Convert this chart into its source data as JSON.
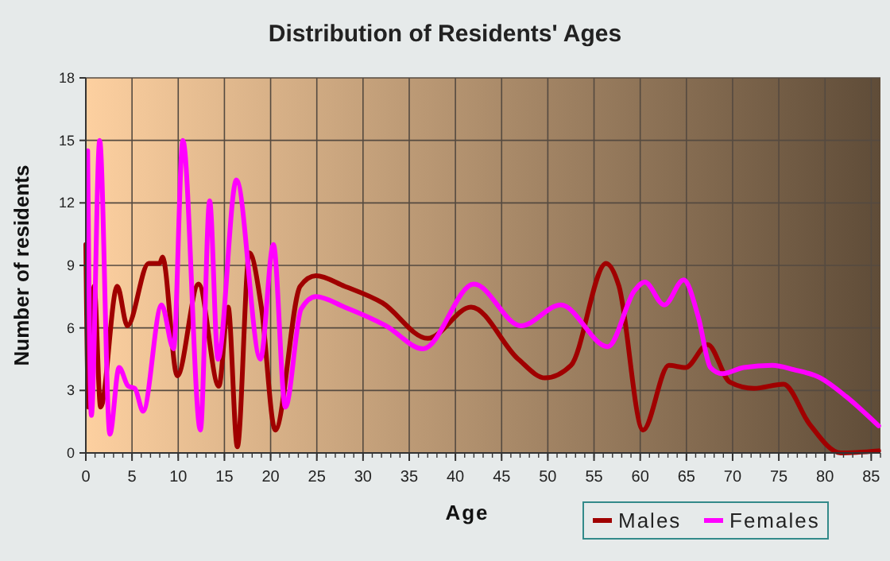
{
  "chart_data": {
    "type": "line",
    "title": "Distribution of Residents' Ages",
    "xlabel": "Age",
    "ylabel": "Number of residents",
    "xlim": [
      0,
      86
    ],
    "xticks": [
      0,
      5,
      10,
      15,
      20,
      25,
      30,
      35,
      40,
      45,
      50,
      55,
      60,
      65,
      70,
      75,
      80,
      85
    ],
    "ylim": [
      0,
      18
    ],
    "yticks": [
      0,
      3,
      6,
      9,
      12,
      15,
      18
    ],
    "grid": true,
    "legend": "bottom right",
    "marker": "none",
    "line_style": "solid",
    "series": [
      {
        "name": "Males",
        "color": "#a00000",
        "x": [
          0,
          0.3,
          0.9,
          1.6,
          3.4,
          4.5,
          6.8,
          8,
          8.3,
          9.9,
          12.2,
          14.4,
          15.4,
          16.4,
          17.7,
          19,
          20.5,
          23.2,
          24.9,
          28,
          32.1,
          37,
          41.7,
          46.8,
          49.7,
          52.5,
          56.3,
          57.7,
          60.3,
          63.1,
          64.9,
          67.3,
          69.7,
          72.3,
          75.5,
          78.3,
          81.7,
          85.8
        ],
        "values": [
          10,
          2.2,
          8,
          2.2,
          8,
          6.1,
          9.1,
          9.1,
          9.4,
          3.7,
          8.1,
          3.2,
          7,
          0.3,
          9.6,
          7,
          1.1,
          8,
          8.5,
          8,
          7.2,
          5.5,
          7,
          4.5,
          3.6,
          4.2,
          9.1,
          8,
          1.1,
          4.2,
          4.1,
          5.2,
          3.4,
          3.1,
          3.3,
          1.4,
          0,
          0.1
        ]
      },
      {
        "name": "Females",
        "color": "#ff00ff",
        "x": [
          0.2,
          0.6,
          1.5,
          2.6,
          3.6,
          4.6,
          5.3,
          6.2,
          8.2,
          9.5,
          10.5,
          12.4,
          13.4,
          14.3,
          16.3,
          18.9,
          20.3,
          21.6,
          23.3,
          24.9,
          28,
          32.5,
          36.5,
          42,
          47.1,
          51.4,
          56.5,
          59.4,
          60.5,
          62.6,
          64.7,
          66.3,
          67.6,
          68.9,
          71.2,
          74.3,
          76.6,
          79.5,
          82.3,
          85.8
        ],
        "values": [
          14.5,
          1.8,
          15,
          0.9,
          4.1,
          3.2,
          3.1,
          2,
          7.1,
          5,
          15,
          1.1,
          12.1,
          4.5,
          13.1,
          4.5,
          10,
          2.2,
          6.9,
          7.5,
          7,
          6.1,
          5,
          8.1,
          6.1,
          7.1,
          5.1,
          7.8,
          8.2,
          7.1,
          8.3,
          6.5,
          4.1,
          3.8,
          4.1,
          4.2,
          4,
          3.6,
          2.7,
          1.3
        ]
      }
    ]
  }
}
